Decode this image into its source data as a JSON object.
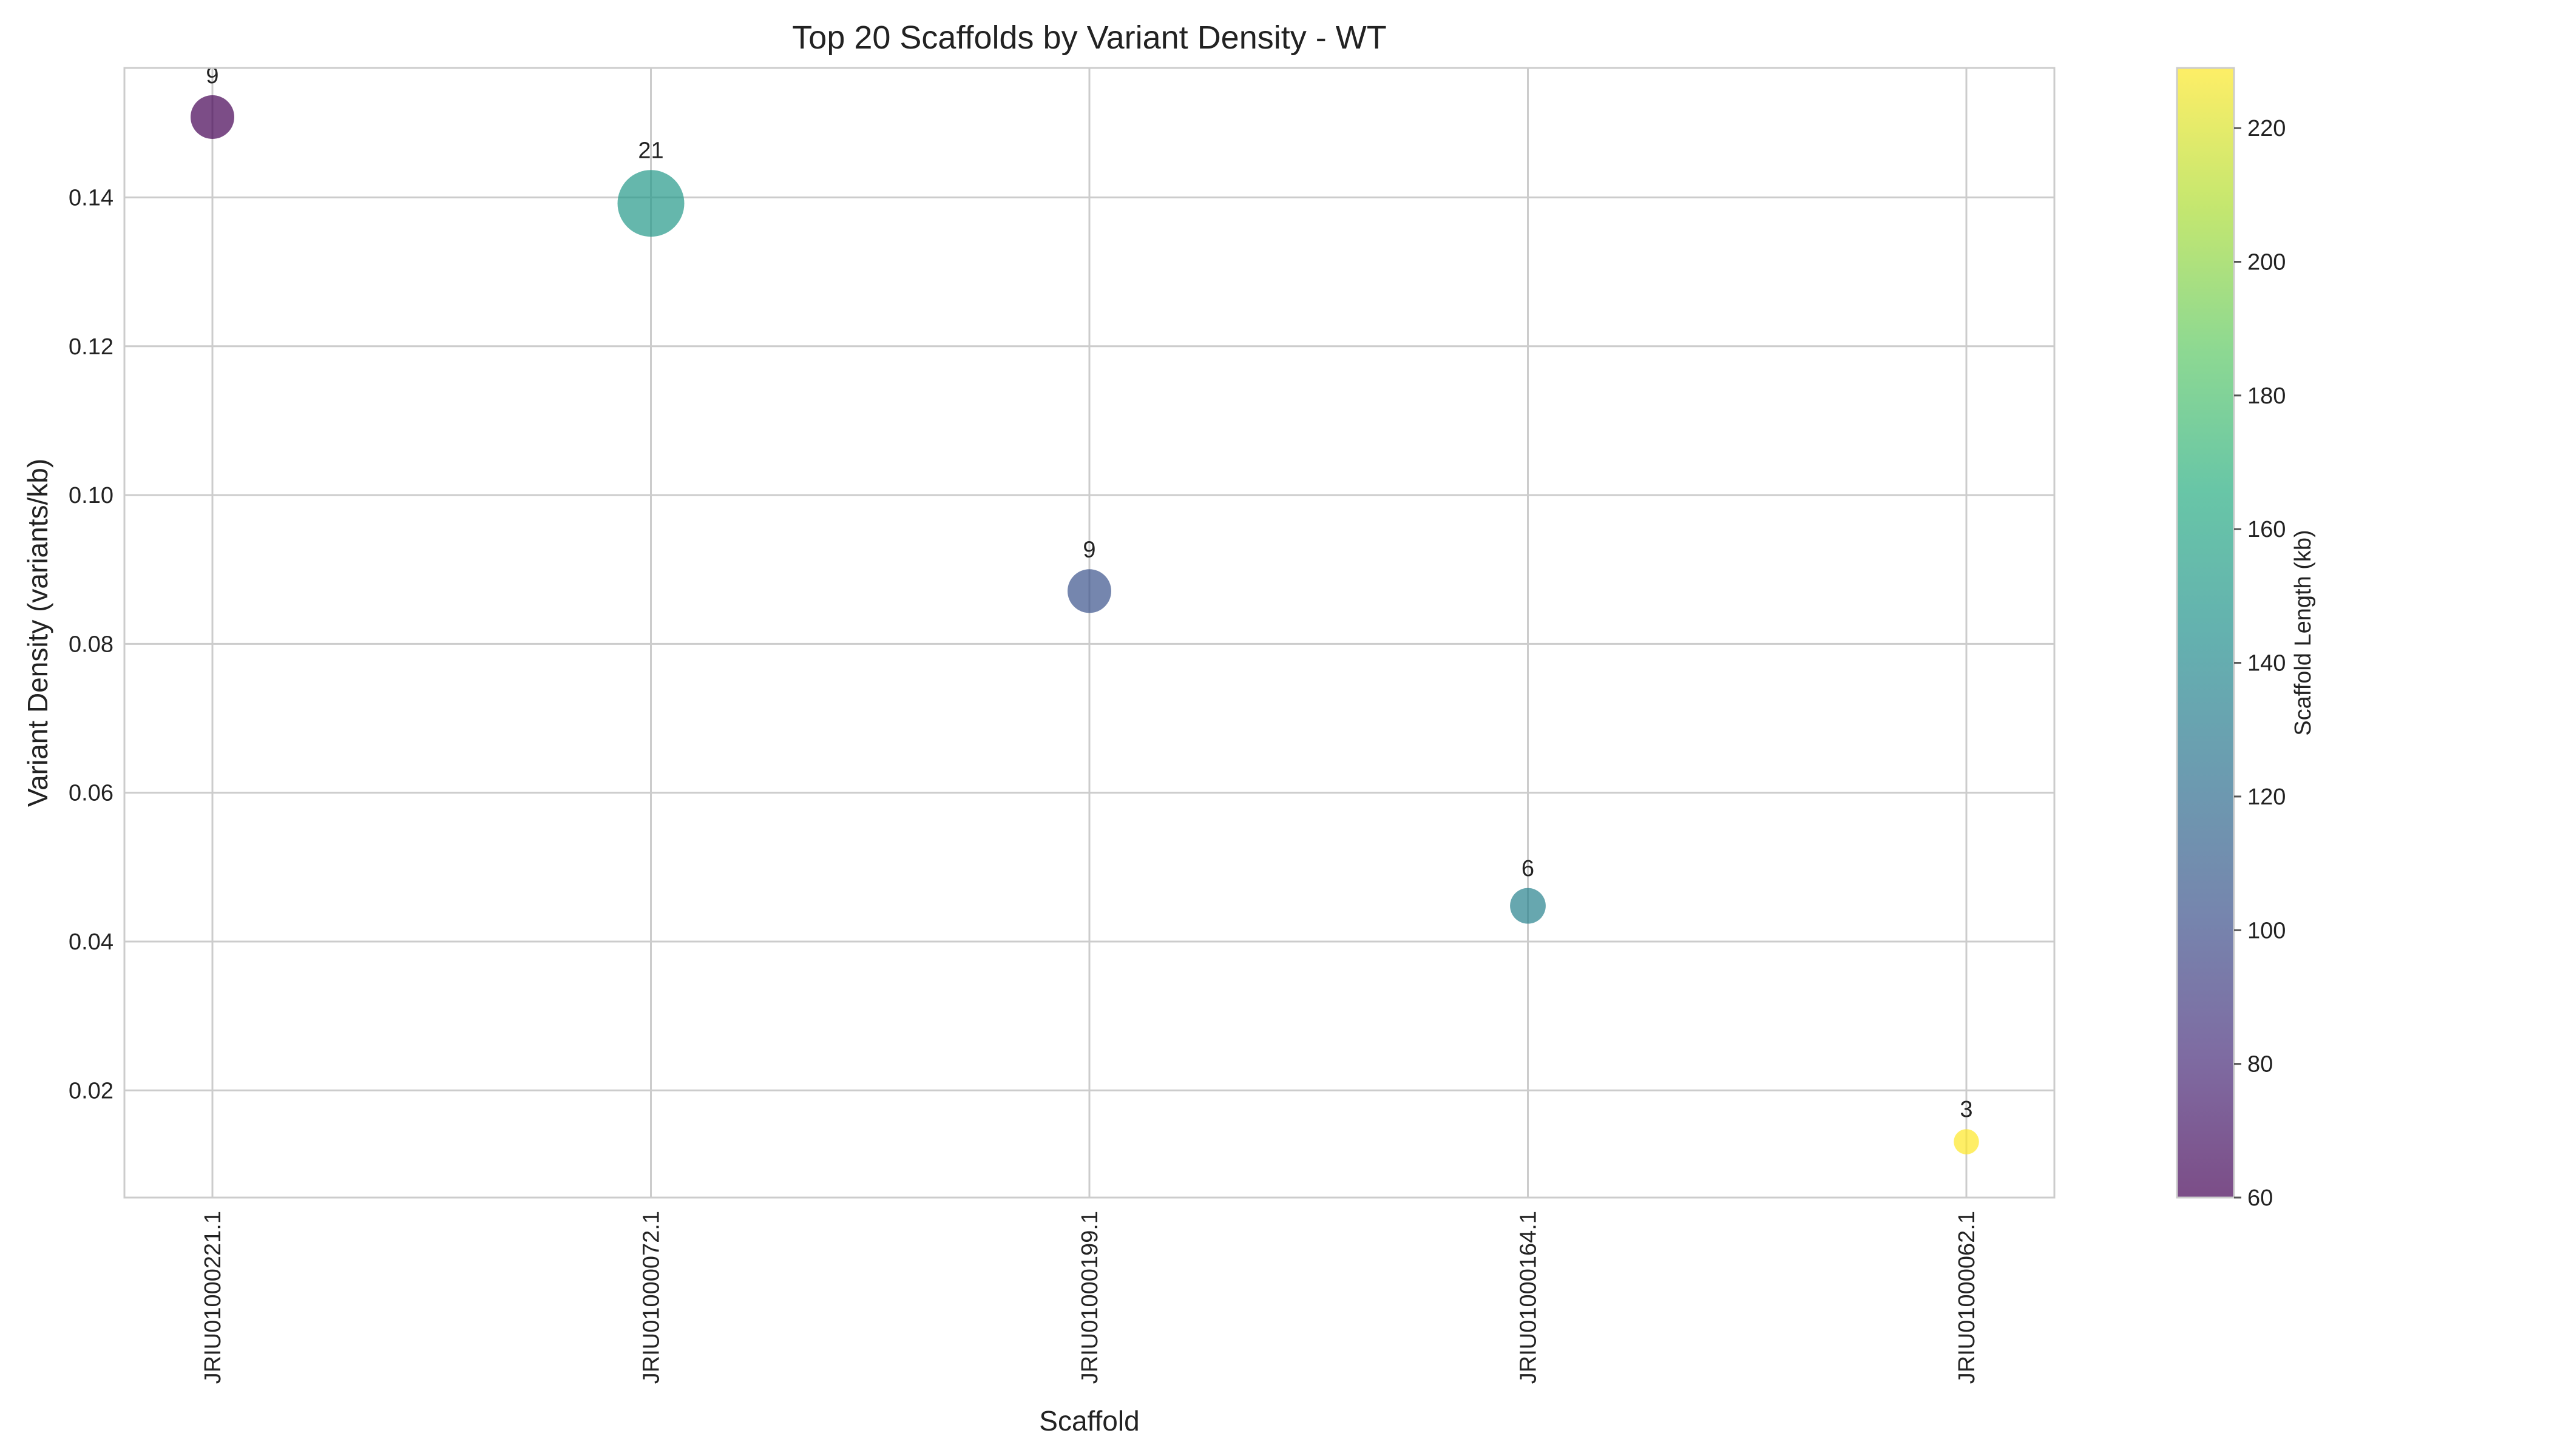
{
  "chart_data": {
    "type": "scatter",
    "title": "Top 20 Scaffolds by Variant Density - WT",
    "xlabel": "Scaffold",
    "ylabel": "Variant Density (variants/kb)",
    "categories": [
      "JRIU01000221.1",
      "JRIU01000072.1",
      "JRIU01000199.1",
      "JRIU01000164.1",
      "JRIU01000062.1"
    ],
    "points": [
      {
        "scaffold": "JRIU01000221.1",
        "density": 0.1508,
        "variants": 9,
        "length_kb": 60,
        "label": "9"
      },
      {
        "scaffold": "JRIU01000072.1",
        "density": 0.1392,
        "variants": 21,
        "length_kb": 151,
        "label": "21"
      },
      {
        "scaffold": "JRIU01000199.1",
        "density": 0.0871,
        "variants": 9,
        "length_kb": 103,
        "label": "9"
      },
      {
        "scaffold": "JRIU01000164.1",
        "density": 0.0448,
        "variants": 6,
        "length_kb": 134,
        "label": "6"
      },
      {
        "scaffold": "JRIU01000062.1",
        "density": 0.0131,
        "variants": 3,
        "length_kb": 229,
        "label": "3"
      }
    ],
    "ylim": [
      0.0056,
      0.1574
    ],
    "yticks": [
      0.02,
      0.04,
      0.06,
      0.08,
      0.1,
      0.12,
      0.14
    ],
    "ytick_labels": [
      "0.02",
      "0.04",
      "0.06",
      "0.08",
      "0.10",
      "0.12",
      "0.14"
    ],
    "grid": true,
    "size_encoding": "variants",
    "color_encoding": "length_kb",
    "colormap": "viridis",
    "point_alpha": 0.7,
    "colorbar": {
      "label": "Scaffold Length (kb)",
      "range": [
        60,
        229
      ],
      "ticks": [
        60,
        80,
        100,
        120,
        140,
        160,
        180,
        200,
        220
      ],
      "tick_labels": [
        "60",
        "80",
        "100",
        "120",
        "140",
        "160",
        "180",
        "200",
        "220"
      ]
    }
  }
}
